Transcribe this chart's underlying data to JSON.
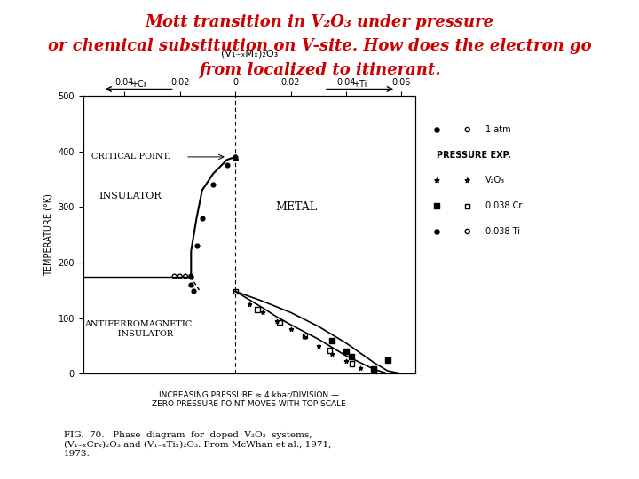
{
  "title_line1": "Mott transition in V₂O₃ under pressure",
  "title_line2": "or chemical substitution on V-site. How does the electron go",
  "title_line3": "from localized to itinerant.",
  "title_color": "#cc0000",
  "bg_color": "#ffffff",
  "ylabel": "TEMPERATURE (°K)",
  "xlabel_top": "(V₁₋ₓMₓ)₂O₃",
  "ylim": [
    0,
    500
  ],
  "yticks": [
    0,
    100,
    200,
    300,
    400,
    500
  ],
  "top_axis_ticks": [
    -0.04,
    -0.02,
    0.0,
    0.02,
    0.04,
    0.06
  ],
  "top_axis_labels": [
    "0.04",
    "0.02",
    "0",
    "0.02",
    "0.04",
    "0.06"
  ],
  "xlim": [
    -0.055,
    0.065
  ]
}
